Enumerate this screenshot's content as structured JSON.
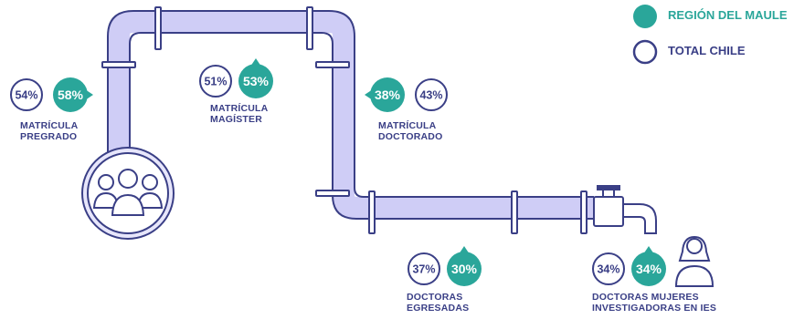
{
  "legend": {
    "maule_label": "REGIÓN DEL MAULE",
    "chile_label": "TOTAL CHILE",
    "maule_color": "#2aa69a",
    "chile_color": "#3a3f86"
  },
  "pipeline_color": "#c9c8f4",
  "stages": [
    {
      "label_lines": [
        "MATRÍCULA",
        "PREGRADO"
      ],
      "total_chile": "54%",
      "region_maule": "58%"
    },
    {
      "label_lines": [
        "MATRÍCULA",
        "MAGÍSTER"
      ],
      "total_chile": "51%",
      "region_maule": "53%"
    },
    {
      "label_lines": [
        "MATRÍCULA",
        "DOCTORADO"
      ],
      "total_chile": "43%",
      "region_maule": "38%"
    },
    {
      "label_lines": [
        "DOCTORAS",
        "EGRESADAS"
      ],
      "total_chile": "37%",
      "region_maule": "30%"
    },
    {
      "label_lines": [
        "DOCTORAS MUJERES",
        "INVESTIGADORAS EN IES"
      ],
      "total_chile": "34%",
      "region_maule": "34%"
    }
  ],
  "icons": [
    "group-of-women-icon",
    "woman-icon",
    "faucet-icon"
  ]
}
